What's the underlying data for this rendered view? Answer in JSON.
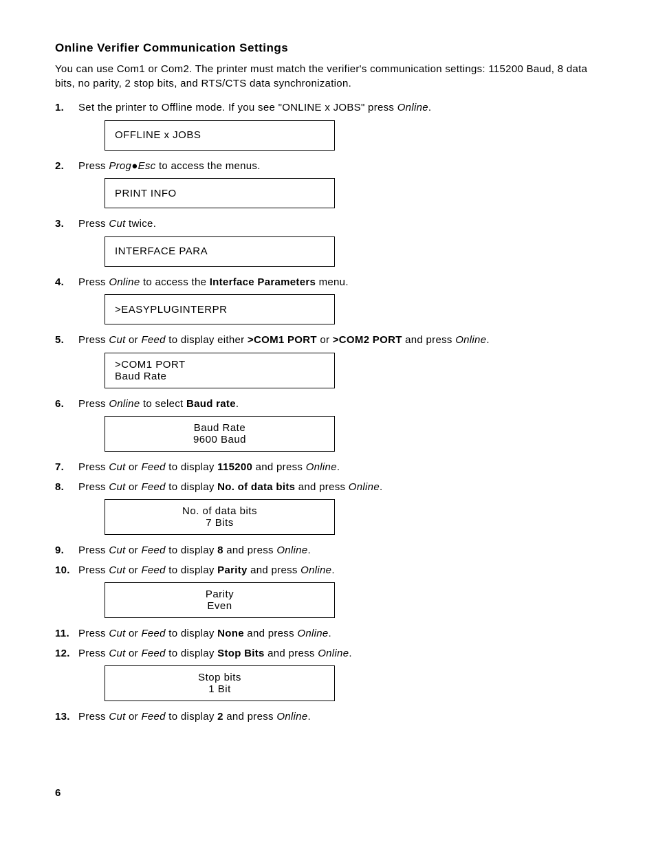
{
  "title": "Online Verifier Communication Settings",
  "intro": "You can use Com1 or Com2.  The printer must match the verifier's communication settings:  115200 Baud, 8 data bits, no parity, 2 stop bits, and RTS/CTS data synchronization.",
  "steps": {
    "s1": {
      "num": "1.",
      "a": "Set the printer to Offline mode.  If you see \"ONLINE  x JOBS\" press ",
      "b": "Online",
      "c": "."
    },
    "d1": {
      "line1": "OFFLINE  x JOBS"
    },
    "s2": {
      "num": "2.",
      "a": "Press ",
      "b": "Prog",
      "bullet": "●",
      "d": "Esc",
      "e": " to access the menus."
    },
    "d2": {
      "line1": "PRINT INFO"
    },
    "s3": {
      "num": "3.",
      "a": "Press ",
      "b": "Cut",
      "c": " twice."
    },
    "d3": {
      "line1": "INTERFACE PARA"
    },
    "s4": {
      "num": "4.",
      "a": "Press ",
      "b": "Online",
      "c": " to access the ",
      "d": "Interface Parameters",
      "e": " menu."
    },
    "d4": {
      "line1": ">EASYPLUGINTERPR"
    },
    "s5": {
      "num": "5.",
      "a": "Press ",
      "b": "Cut",
      "c": " or ",
      "d": "Feed",
      "e": " to display either ",
      "f": ">COM1 PORT",
      "g": " or ",
      "h": ">COM2 PORT",
      "i": " and press ",
      "j": "Online",
      "k": "."
    },
    "d5": {
      "line1": ">COM1 PORT",
      "line2": "Baud Rate"
    },
    "s6": {
      "num": "6.",
      "a": "Press ",
      "b": "Online",
      "c": " to select ",
      "d": "Baud rate",
      "e": "."
    },
    "d6": {
      "line1": "Baud Rate",
      "line2": "9600 Baud"
    },
    "s7": {
      "num": "7.",
      "a": "Press ",
      "b": "Cut",
      "c": " or ",
      "d": "Feed",
      "e": " to display ",
      "f": "115200",
      "g": " and press ",
      "h": "Online",
      "i": "."
    },
    "s8": {
      "num": "8.",
      "a": "Press ",
      "b": "Cut",
      "c": " or ",
      "d": "Feed",
      "e": " to display ",
      "f": "No. of data bits",
      "g": " and press ",
      "h": "Online",
      "i": "."
    },
    "d8": {
      "line1": "No. of data bits",
      "line2": "7 Bits"
    },
    "s9": {
      "num": "9.",
      "a": "Press ",
      "b": "Cut",
      "c": " or ",
      "d": "Feed",
      "e": " to display ",
      "f": "8",
      "g": " and press ",
      "h": "Online",
      "i": "."
    },
    "s10": {
      "num": "10.",
      "a": "Press ",
      "b": "Cut",
      "c": " or ",
      "d": "Feed",
      "e": " to display ",
      "f": "Parity",
      "g": " and press ",
      "h": "Online",
      "i": "."
    },
    "d10": {
      "line1": "Parity",
      "line2": "Even"
    },
    "s11": {
      "num": "11.",
      "a": "Press ",
      "b": "Cut",
      "c": " or ",
      "d": "Feed",
      "e": " to display ",
      "f": "None",
      "g": " and press ",
      "h": "Online",
      "i": "."
    },
    "s12": {
      "num": "12.",
      "a": "Press ",
      "b": "Cut",
      "c": " or ",
      "d": "Feed",
      "e": " to display ",
      "f": "Stop Bits",
      "g": " and press ",
      "h": "Online",
      "i": "."
    },
    "d12": {
      "line1": "Stop bits",
      "line2": "1 Bit"
    },
    "s13": {
      "num": "13.",
      "a": "Press ",
      "b": "Cut",
      "c": " or ",
      "d": "Feed",
      "e": " to display ",
      "f": "2",
      "g": " and press ",
      "h": "Online",
      "i": "."
    }
  },
  "pagenum": "6"
}
